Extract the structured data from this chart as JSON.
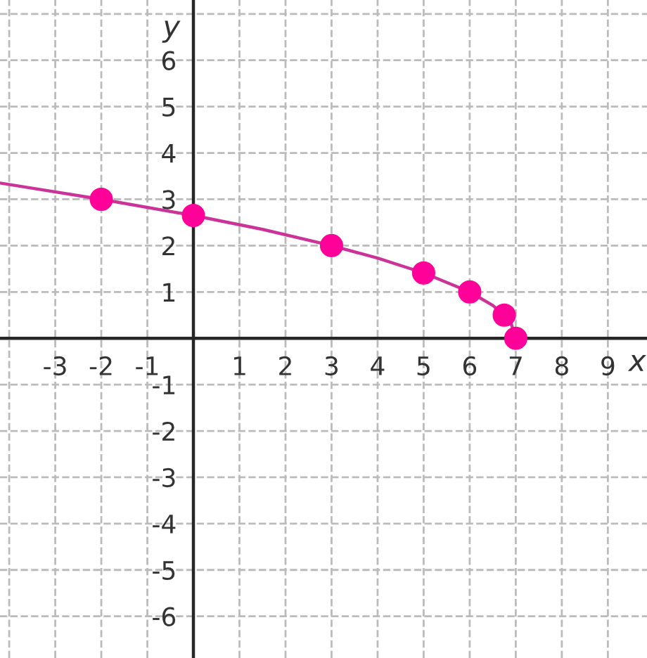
{
  "chart_data": {
    "type": "line",
    "xlabel": "x",
    "ylabel": "y",
    "xlim": [
      -4.2,
      9.85
    ],
    "ylim": [
      -6.9,
      7.3
    ],
    "xticks": [
      {
        "value": -4,
        "label": null
      },
      -3,
      -2,
      -1,
      {
        "value": 0,
        "label": null
      },
      1,
      2,
      3,
      4,
      5,
      6,
      7,
      8,
      9
    ],
    "yticks": [
      -6,
      -5,
      -4,
      -3,
      -2,
      -1,
      {
        "value": 0,
        "label": null
      },
      1,
      2,
      3,
      4,
      5,
      6,
      {
        "value": 7,
        "label": null
      }
    ],
    "grid": true,
    "line_style": "solid",
    "series": [
      {
        "color": "#cc3399",
        "marker": "none",
        "x": [
          -4.2,
          -2,
          0,
          1.5,
          3,
          4,
          5,
          6,
          6.5,
          6.75,
          6.9,
          7
        ],
        "values": [
          3.35,
          3,
          2.65,
          2.35,
          2,
          1.73,
          1.41,
          1,
          0.71,
          0.5,
          0.32,
          0
        ]
      },
      {
        "type": "scatter",
        "color": "#ff0099",
        "marker": "circle",
        "x": [
          -2,
          0,
          3,
          5,
          6,
          6.75,
          7
        ],
        "values": [
          3,
          2.65,
          2,
          1.41,
          1,
          0.5,
          0
        ]
      }
    ]
  }
}
